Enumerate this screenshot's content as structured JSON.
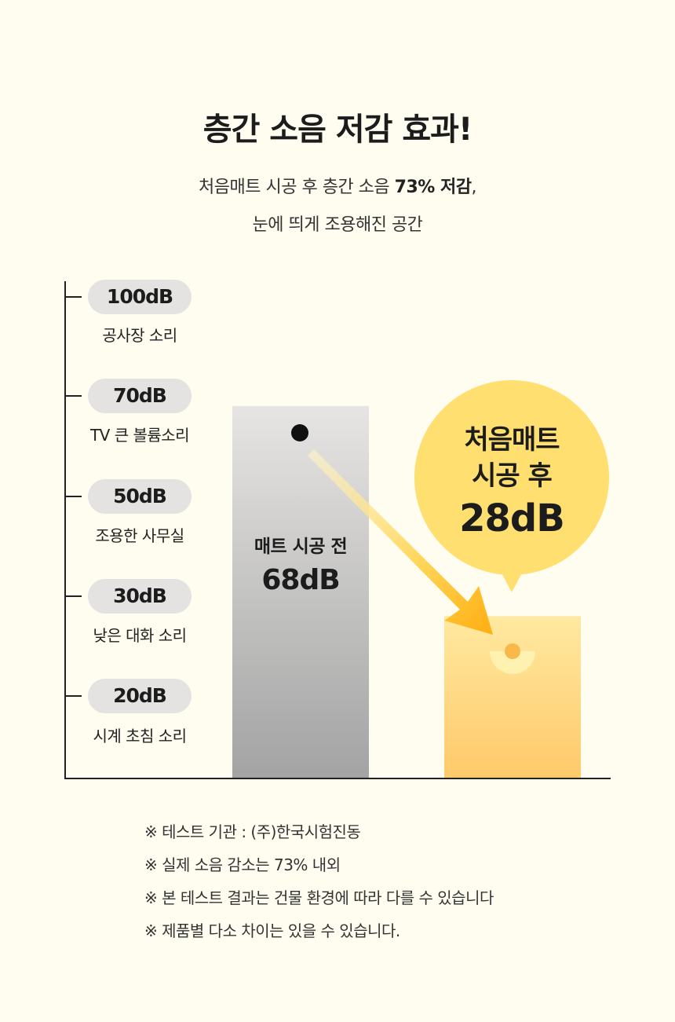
{
  "title": "층간 소음 저감 효과!",
  "subtitle": {
    "line1_prefix": "처음매트 시공 후 층간 소음 ",
    "line1_bold": "73% 저감",
    "line1_suffix": ",",
    "line2": "눈에 띄게 조용해진 공간"
  },
  "levels": [
    {
      "value": "100dB",
      "desc": "공사장 소리"
    },
    {
      "value": "70dB",
      "desc": "TV 큰 볼륨소리"
    },
    {
      "value": "50dB",
      "desc": "조용한 사무실"
    },
    {
      "value": "30dB",
      "desc": "낮은 대화 소리"
    },
    {
      "value": "20dB",
      "desc": "시계 초침 소리"
    }
  ],
  "bars": {
    "before": {
      "label": "매트 시공 전",
      "value_label": "68dB"
    },
    "after": {
      "label_line1": "처음매트",
      "label_line2": "시공 후",
      "value_label": "28dB"
    }
  },
  "colors": {
    "before_top": "#e6e5e3",
    "before_bottom": "#a3a3a3",
    "after_top": "#ffe9a0",
    "after_bottom": "#ffc96a",
    "bubble": "#ffdf70",
    "arrow": "#ffb81c"
  },
  "chart_data": {
    "type": "bar",
    "categories": [
      "매트 시공 전",
      "처음매트 시공 후"
    ],
    "values": [
      68,
      28
    ],
    "ylabel": "",
    "y_ticks": [
      "100dB",
      "70dB",
      "50dB",
      "30dB",
      "20dB"
    ],
    "grid": false,
    "legend": "none"
  },
  "notes": [
    "※ 테스트 기관 : (주)한국시험진동",
    "※ 실제 소음 감소는 73% 내외",
    "※ 본 테스트 결과는 건물 환경에 따라 다를 수 있습니다",
    "※ 제품별 다소 차이는 있을 수 있습니다."
  ]
}
